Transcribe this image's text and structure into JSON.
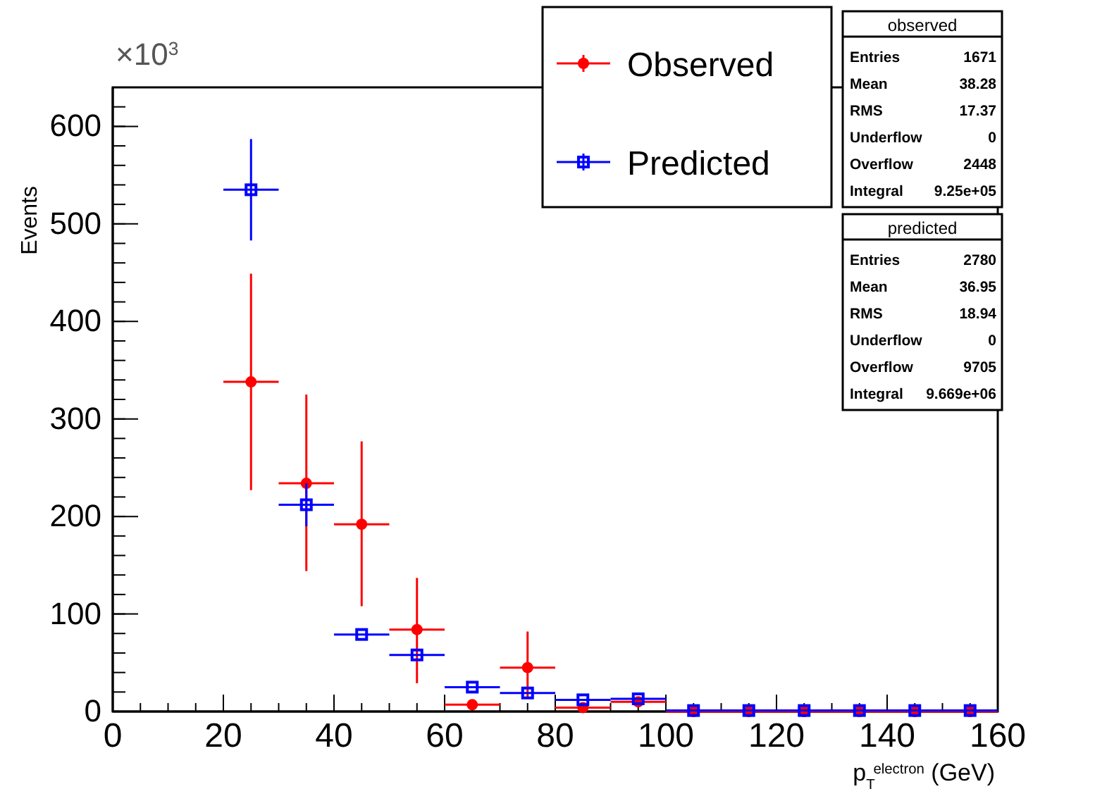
{
  "chart_data": {
    "type": "scatter",
    "xlabel": "p$_{T}$$^{electron}$ (GeV)",
    "ylabel": "Events",
    "x": [
      25,
      35,
      45,
      55,
      65,
      75,
      85,
      95,
      105,
      115,
      125,
      135,
      145,
      155
    ],
    "series": [
      {
        "name": "Observed",
        "color": "#ff0000",
        "marker": "circle",
        "values": [
          338,
          234,
          192,
          84,
          7,
          45,
          4,
          10,
          0,
          0,
          0,
          0,
          0,
          0
        ],
        "errors": [
          [
            227,
            449
          ],
          [
            144,
            325
          ],
          [
            108,
            277
          ],
          [
            29,
            137
          ],
          null,
          [
            14,
            82
          ],
          null,
          null,
          null,
          null,
          null,
          null,
          null,
          null
        ],
        "xerrors": [
          5,
          5,
          5,
          5,
          5,
          5,
          5,
          5,
          5,
          5,
          5,
          5,
          5,
          5
        ]
      },
      {
        "name": "Predicted",
        "color": "#0000ff",
        "marker": "square",
        "values": [
          535,
          212,
          79,
          58,
          25,
          19,
          12,
          13,
          1,
          1,
          1,
          1,
          1,
          1
        ],
        "errors": [
          [
            483,
            587
          ],
          [
            190,
            234
          ],
          null,
          null,
          null,
          null,
          null,
          null,
          null,
          null,
          null,
          null,
          null,
          null
        ],
        "xerrors": [
          5,
          5,
          5,
          5,
          5,
          5,
          5,
          5,
          5,
          5,
          5,
          5,
          5,
          5
        ]
      }
    ],
    "xlim": [
      0,
      160
    ],
    "xticks": [
      0,
      20,
      40,
      60,
      80,
      100,
      120,
      140,
      160
    ],
    "ylim": [
      0,
      640
    ],
    "yticks": [
      0,
      100,
      200,
      300,
      400,
      500,
      600
    ],
    "grid": false,
    "legend": "top right",
    "annotations": [
      "×10$^{3}$",
      "observed",
      "Entries 1671",
      "Mean 38.28",
      "RMS 17.37",
      "Underflow 0",
      "Overflow 2448",
      "Integral 9.25e+05",
      "predicted",
      "Entries 2780",
      "Mean 36.95",
      "RMS 18.94",
      "Underflow 0",
      "Overflow 9705",
      "Integral 9.669e+06"
    ]
  }
}
